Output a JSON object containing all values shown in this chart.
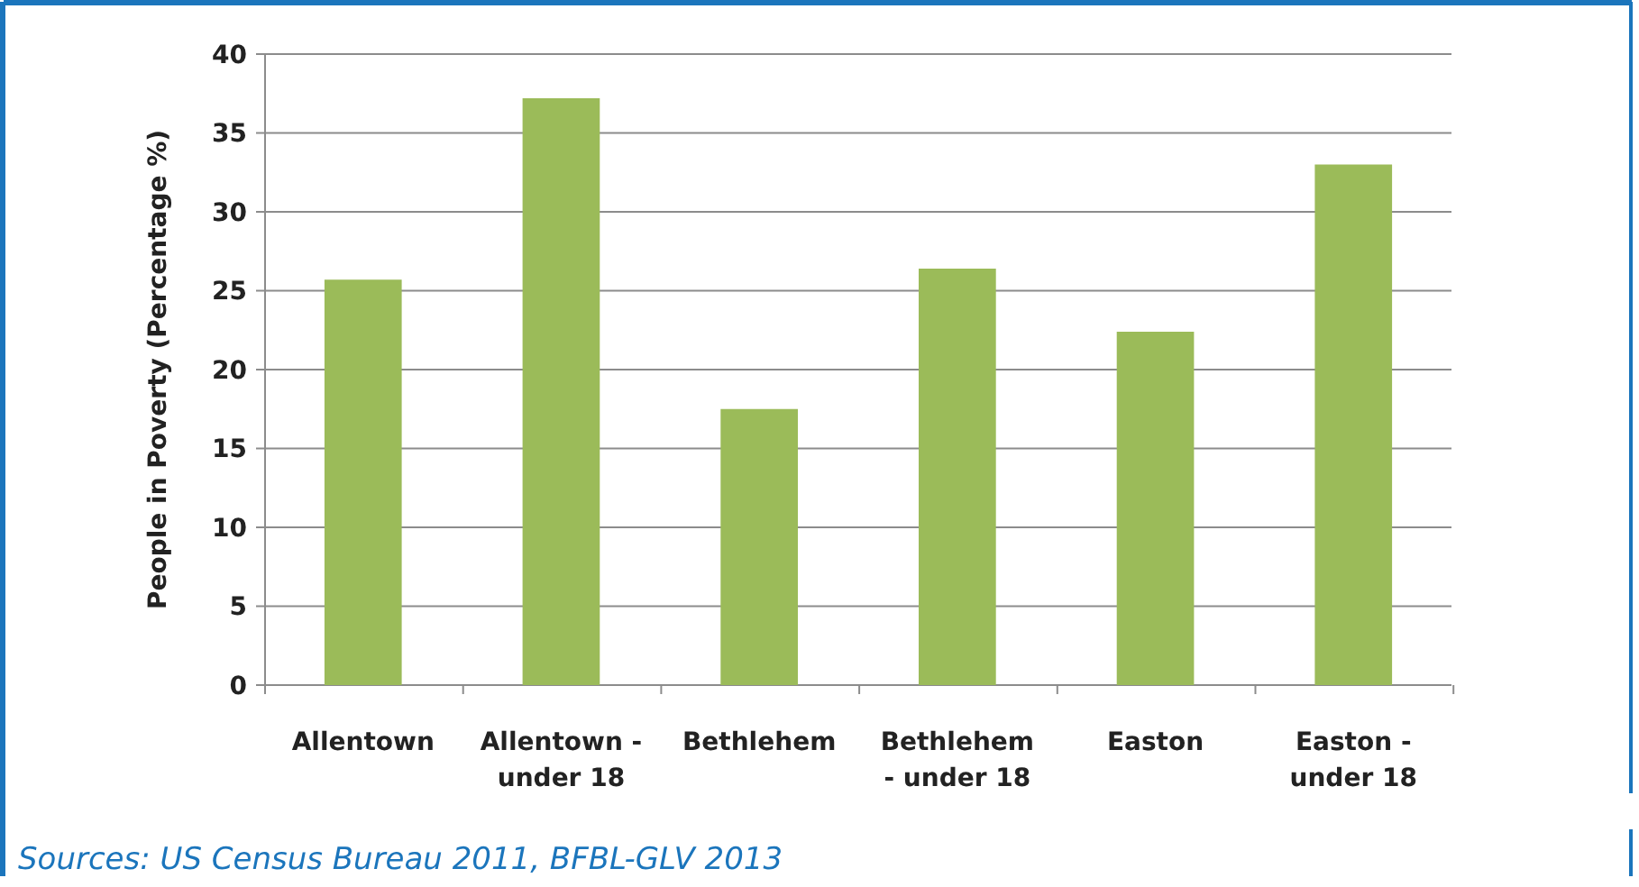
{
  "chart_data": {
    "type": "bar",
    "ylabel": "People in Poverty (Percentage %)",
    "categories": [
      "Allentown",
      "Allentown -\nunder 18",
      "Bethlehem",
      "Bethlehem\n- under 18",
      "Easton",
      "Easton -\nunder 18"
    ],
    "values": [
      25.7,
      37.2,
      17.5,
      26.4,
      22.4,
      33.0
    ],
    "color": "#9bbb59",
    "ylim": [
      0,
      40
    ],
    "yticks": [
      0,
      5,
      10,
      15,
      20,
      25,
      30,
      35,
      40
    ],
    "grid": "y",
    "annotations": [
      "Sources:  US Census Bureau 2011, BFBL-GLV 2013"
    ]
  }
}
